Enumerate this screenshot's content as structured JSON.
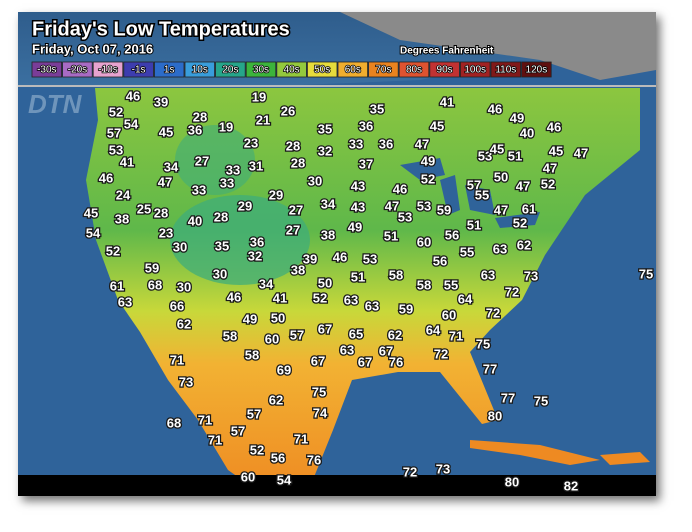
{
  "header": {
    "title": "Friday's Low Temperatures",
    "subtitle": "Friday, Oct 07, 2016",
    "units": "Degrees Fahrenheit"
  },
  "legend": [
    "-30s",
    "-20s",
    "-10s",
    "-1s",
    "1s",
    "10s",
    "20s",
    "30s",
    "40s",
    "50s",
    "60s",
    "70s",
    "80s",
    "90s",
    "100s",
    "110s",
    "120s"
  ],
  "logo": "DTN",
  "temperatures": [
    46,
    39,
    19,
    35,
    41,
    46,
    49,
    52,
    54,
    28,
    21,
    26,
    57,
    45,
    36,
    19,
    35,
    36,
    45,
    40,
    46,
    53,
    23,
    28,
    32,
    33,
    36,
    47,
    53,
    45,
    51,
    45,
    47,
    41,
    34,
    27,
    33,
    31,
    28,
    37,
    49,
    47,
    46,
    47,
    33,
    30,
    43,
    46,
    52,
    57,
    50,
    47,
    52,
    24,
    33,
    29,
    55,
    45,
    38,
    25,
    28,
    40,
    28,
    29,
    27,
    34,
    43,
    47,
    53,
    53,
    59,
    47,
    61,
    54,
    23,
    27,
    38,
    49,
    51,
    60,
    56,
    51,
    52,
    52,
    30,
    35,
    36,
    32,
    39,
    46,
    53,
    56,
    55,
    63,
    62,
    59,
    38,
    58,
    30,
    50,
    51,
    63,
    73,
    75,
    61,
    68,
    30,
    34,
    58,
    55,
    72,
    63,
    66,
    46,
    41,
    52,
    63,
    63,
    59,
    64,
    62,
    49,
    50,
    67,
    65,
    62,
    60,
    72,
    58,
    60,
    57,
    64,
    71,
    63,
    67,
    72,
    75,
    71,
    58,
    67,
    67,
    76,
    77,
    69,
    73,
    75,
    62,
    77,
    75,
    57,
    74,
    80,
    68,
    71,
    57,
    71,
    71,
    52,
    56,
    76,
    72,
    73,
    60,
    54,
    80,
    82
  ]
}
